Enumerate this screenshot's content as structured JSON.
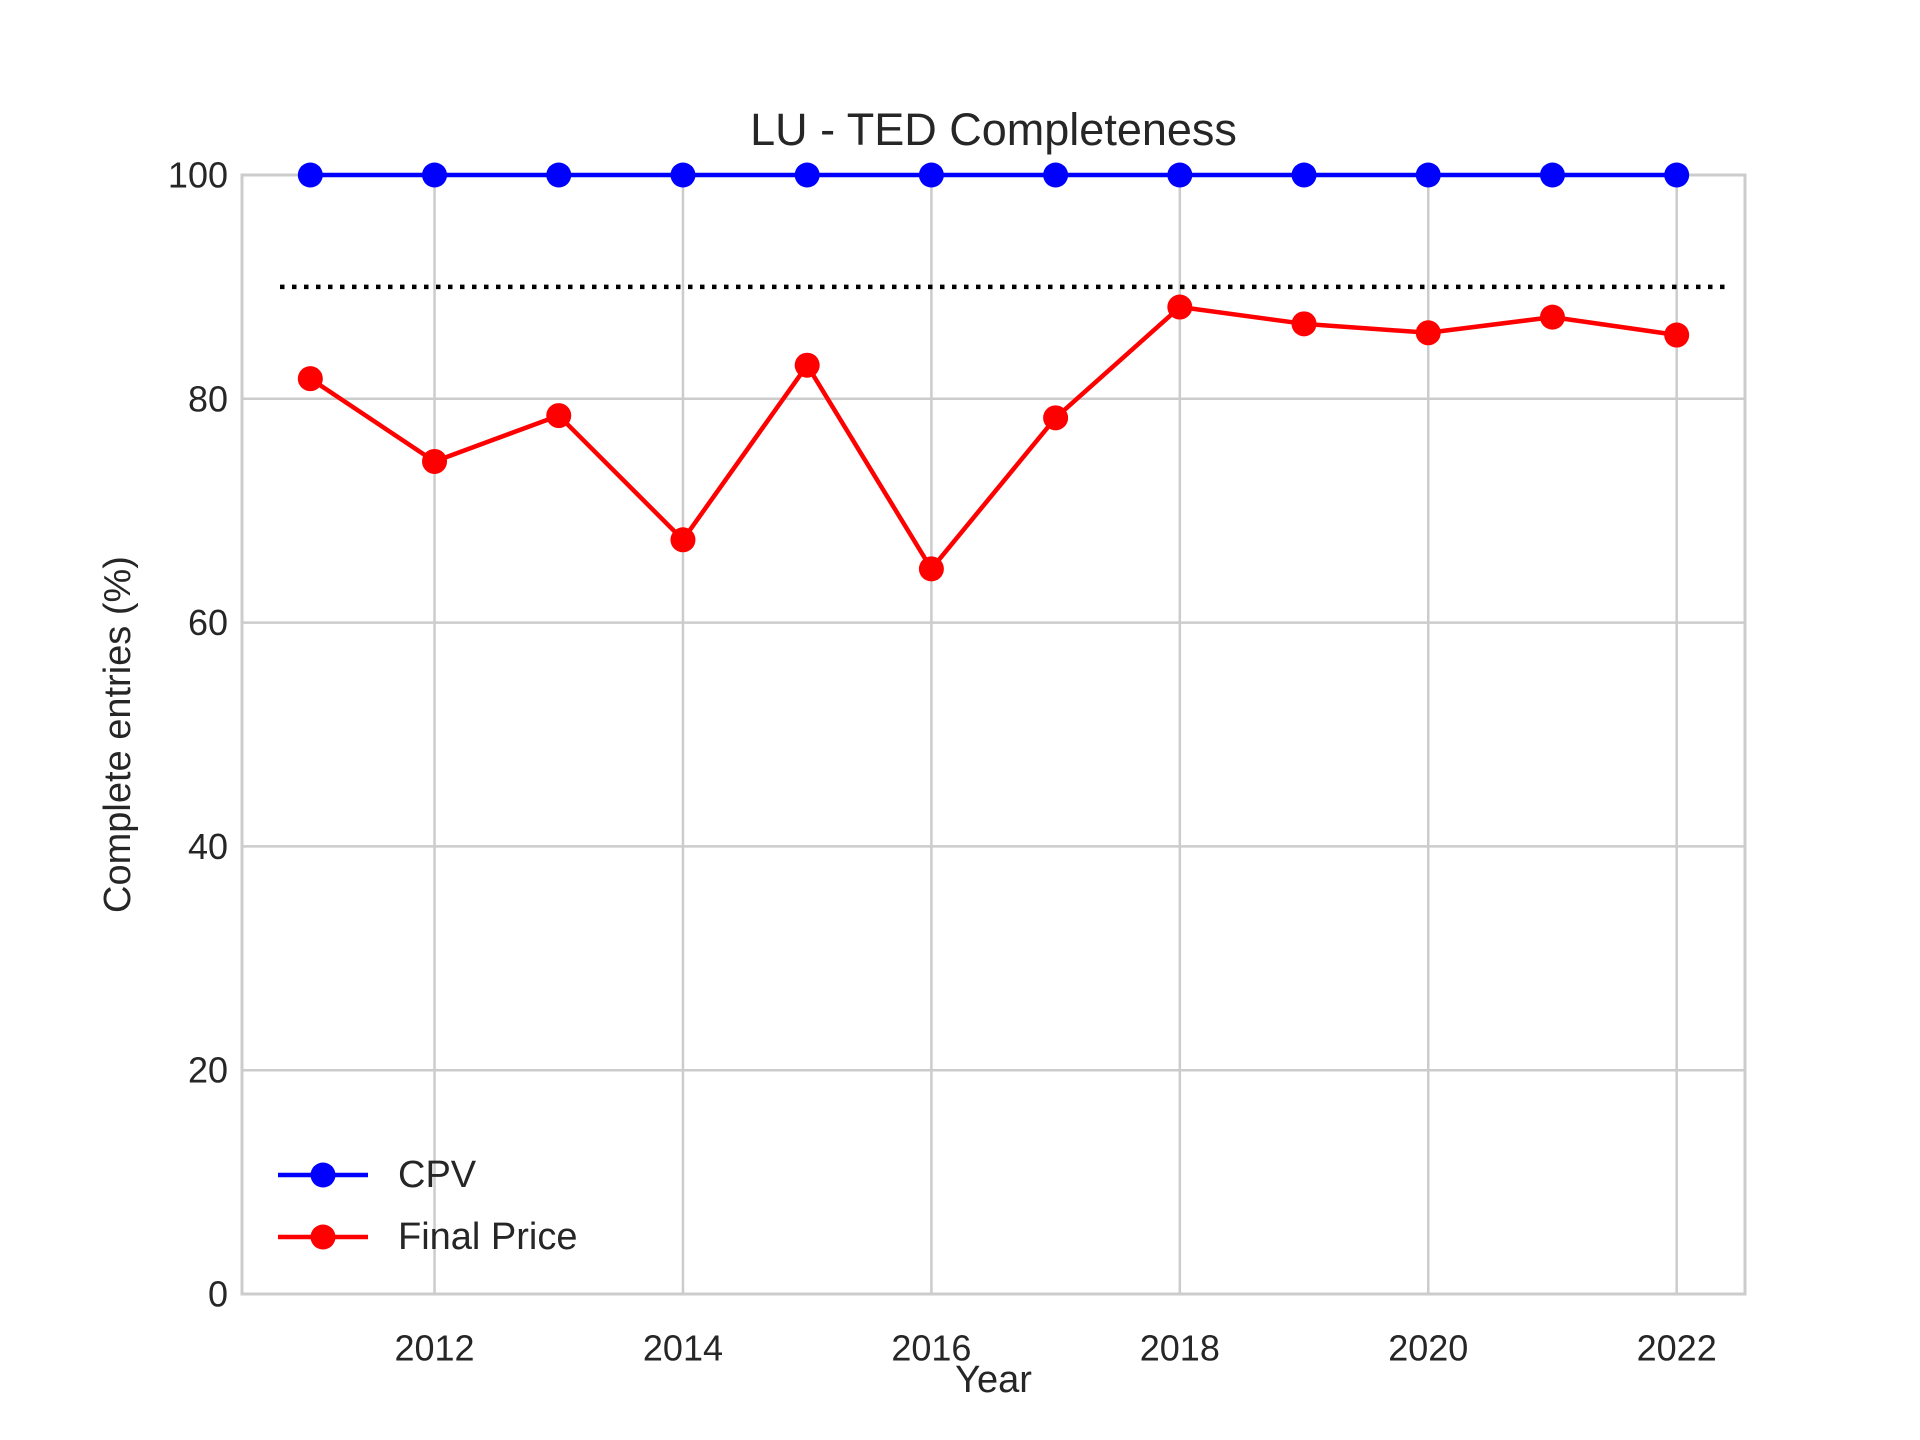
{
  "chart_data": {
    "type": "line",
    "title": "LU - TED Completeness",
    "xlabel": "Year",
    "ylabel": "Complete entries (%)",
    "x": [
      2011,
      2012,
      2013,
      2014,
      2015,
      2016,
      2017,
      2018,
      2019,
      2020,
      2021,
      2022
    ],
    "xlim": [
      2010.45,
      2022.55
    ],
    "ylim": [
      0,
      100
    ],
    "xticks": [
      2012,
      2014,
      2016,
      2018,
      2020,
      2022
    ],
    "yticks": [
      0,
      20,
      40,
      60,
      80,
      100
    ],
    "grid": true,
    "legend_position": "lower-left",
    "threshold_line": {
      "y": 90,
      "style": "dotted",
      "color": "#000000"
    },
    "series": [
      {
        "name": "CPV",
        "color": "#0000ff",
        "marker": "circle",
        "values": [
          100,
          100,
          100,
          100,
          100,
          100,
          100,
          100,
          100,
          100,
          100,
          100
        ]
      },
      {
        "name": "Final Price",
        "color": "#ff0000",
        "marker": "circle",
        "values": [
          81.8,
          74.4,
          78.5,
          67.4,
          83.0,
          64.8,
          78.3,
          88.2,
          86.7,
          85.9,
          87.3,
          85.7
        ]
      }
    ]
  }
}
